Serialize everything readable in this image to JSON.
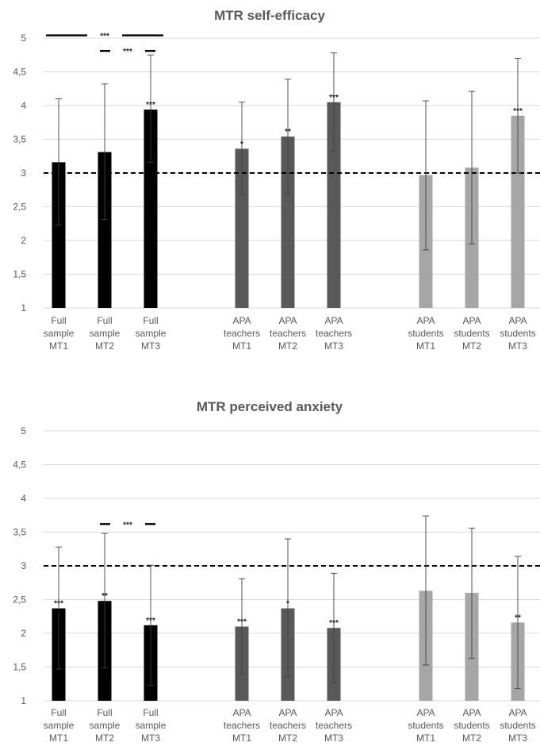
{
  "chart_data": [
    {
      "type": "bar",
      "title": "MTR self-efficacy",
      "ylim": [
        1,
        5
      ],
      "yticks": [
        "1",
        "1,5",
        "2",
        "2,5",
        "3",
        "3,5",
        "4",
        "4,5",
        "5"
      ],
      "reference_line": 3,
      "grid": true,
      "categories": [
        [
          "Full",
          "sample",
          "MT1"
        ],
        [
          "Full",
          "sample",
          "MT2"
        ],
        [
          "Full",
          "sample",
          "MT3"
        ],
        [
          "APA",
          "teachers",
          "MT1"
        ],
        [
          "APA",
          "teachers",
          "MT2"
        ],
        [
          "APA",
          "teachers",
          "MT3"
        ],
        [
          "APA",
          "students",
          "MT1"
        ],
        [
          "APA",
          "students",
          "MT2"
        ],
        [
          "APA",
          "students",
          "MT3"
        ]
      ],
      "values": [
        3.16,
        3.31,
        3.94,
        3.36,
        3.54,
        4.05,
        2.97,
        3.08,
        3.85
      ],
      "error_low": [
        2.23,
        2.31,
        3.16,
        2.67,
        2.7,
        3.32,
        1.86,
        1.95,
        3.0
      ],
      "error_high": [
        4.1,
        4.32,
        4.75,
        4.05,
        4.39,
        4.78,
        4.07,
        4.21,
        4.7
      ],
      "significance": [
        "",
        "",
        "***",
        "*",
        "**",
        "***",
        "",
        "",
        "***"
      ],
      "colors": [
        "#000000",
        "#000000",
        "#000000",
        "#595959",
        "#595959",
        "#595959",
        "#a6a6a6",
        "#a6a6a6",
        "#a6a6a6"
      ],
      "comparisons": [
        {
          "from": 0,
          "to": 2,
          "label": "***",
          "level": 5.04
        },
        {
          "from": 1,
          "to": 2,
          "label": "***",
          "level": 4.81
        }
      ]
    },
    {
      "type": "bar",
      "title": "MTR perceived anxiety",
      "ylim": [
        1,
        5
      ],
      "yticks": [
        "1",
        "1,5",
        "2",
        "2,5",
        "3",
        "3,5",
        "4",
        "4,5",
        "5"
      ],
      "reference_line": 3,
      "grid": true,
      "categories": [
        [
          "Full",
          "sample",
          "MT1"
        ],
        [
          "Full",
          "sample",
          "MT2"
        ],
        [
          "Full",
          "sample",
          "MT3"
        ],
        [
          "APA",
          "teachers",
          "MT1"
        ],
        [
          "APA",
          "teachers",
          "MT2"
        ],
        [
          "APA",
          "teachers",
          "MT3"
        ],
        [
          "APA",
          "students",
          "MT1"
        ],
        [
          "APA",
          "students",
          "MT2"
        ],
        [
          "APA",
          "students",
          "MT3"
        ]
      ],
      "values": [
        2.37,
        2.48,
        2.12,
        2.1,
        2.37,
        2.08,
        2.63,
        2.6,
        2.16
      ],
      "error_low": [
        1.47,
        1.49,
        1.23,
        1.4,
        1.35,
        1.27,
        1.53,
        1.63,
        1.18
      ],
      "error_high": [
        3.28,
        3.48,
        3.01,
        2.81,
        3.4,
        2.89,
        3.74,
        3.56,
        3.14
      ],
      "significance": [
        "***",
        "**",
        "***",
        "***",
        "*",
        "***",
        "",
        "",
        "**"
      ],
      "colors": [
        "#000000",
        "#000000",
        "#000000",
        "#595959",
        "#595959",
        "#595959",
        "#a6a6a6",
        "#a6a6a6",
        "#a6a6a6"
      ],
      "comparisons": [
        {
          "from": 1,
          "to": 2,
          "label": "***",
          "level": 3.62
        }
      ]
    }
  ]
}
